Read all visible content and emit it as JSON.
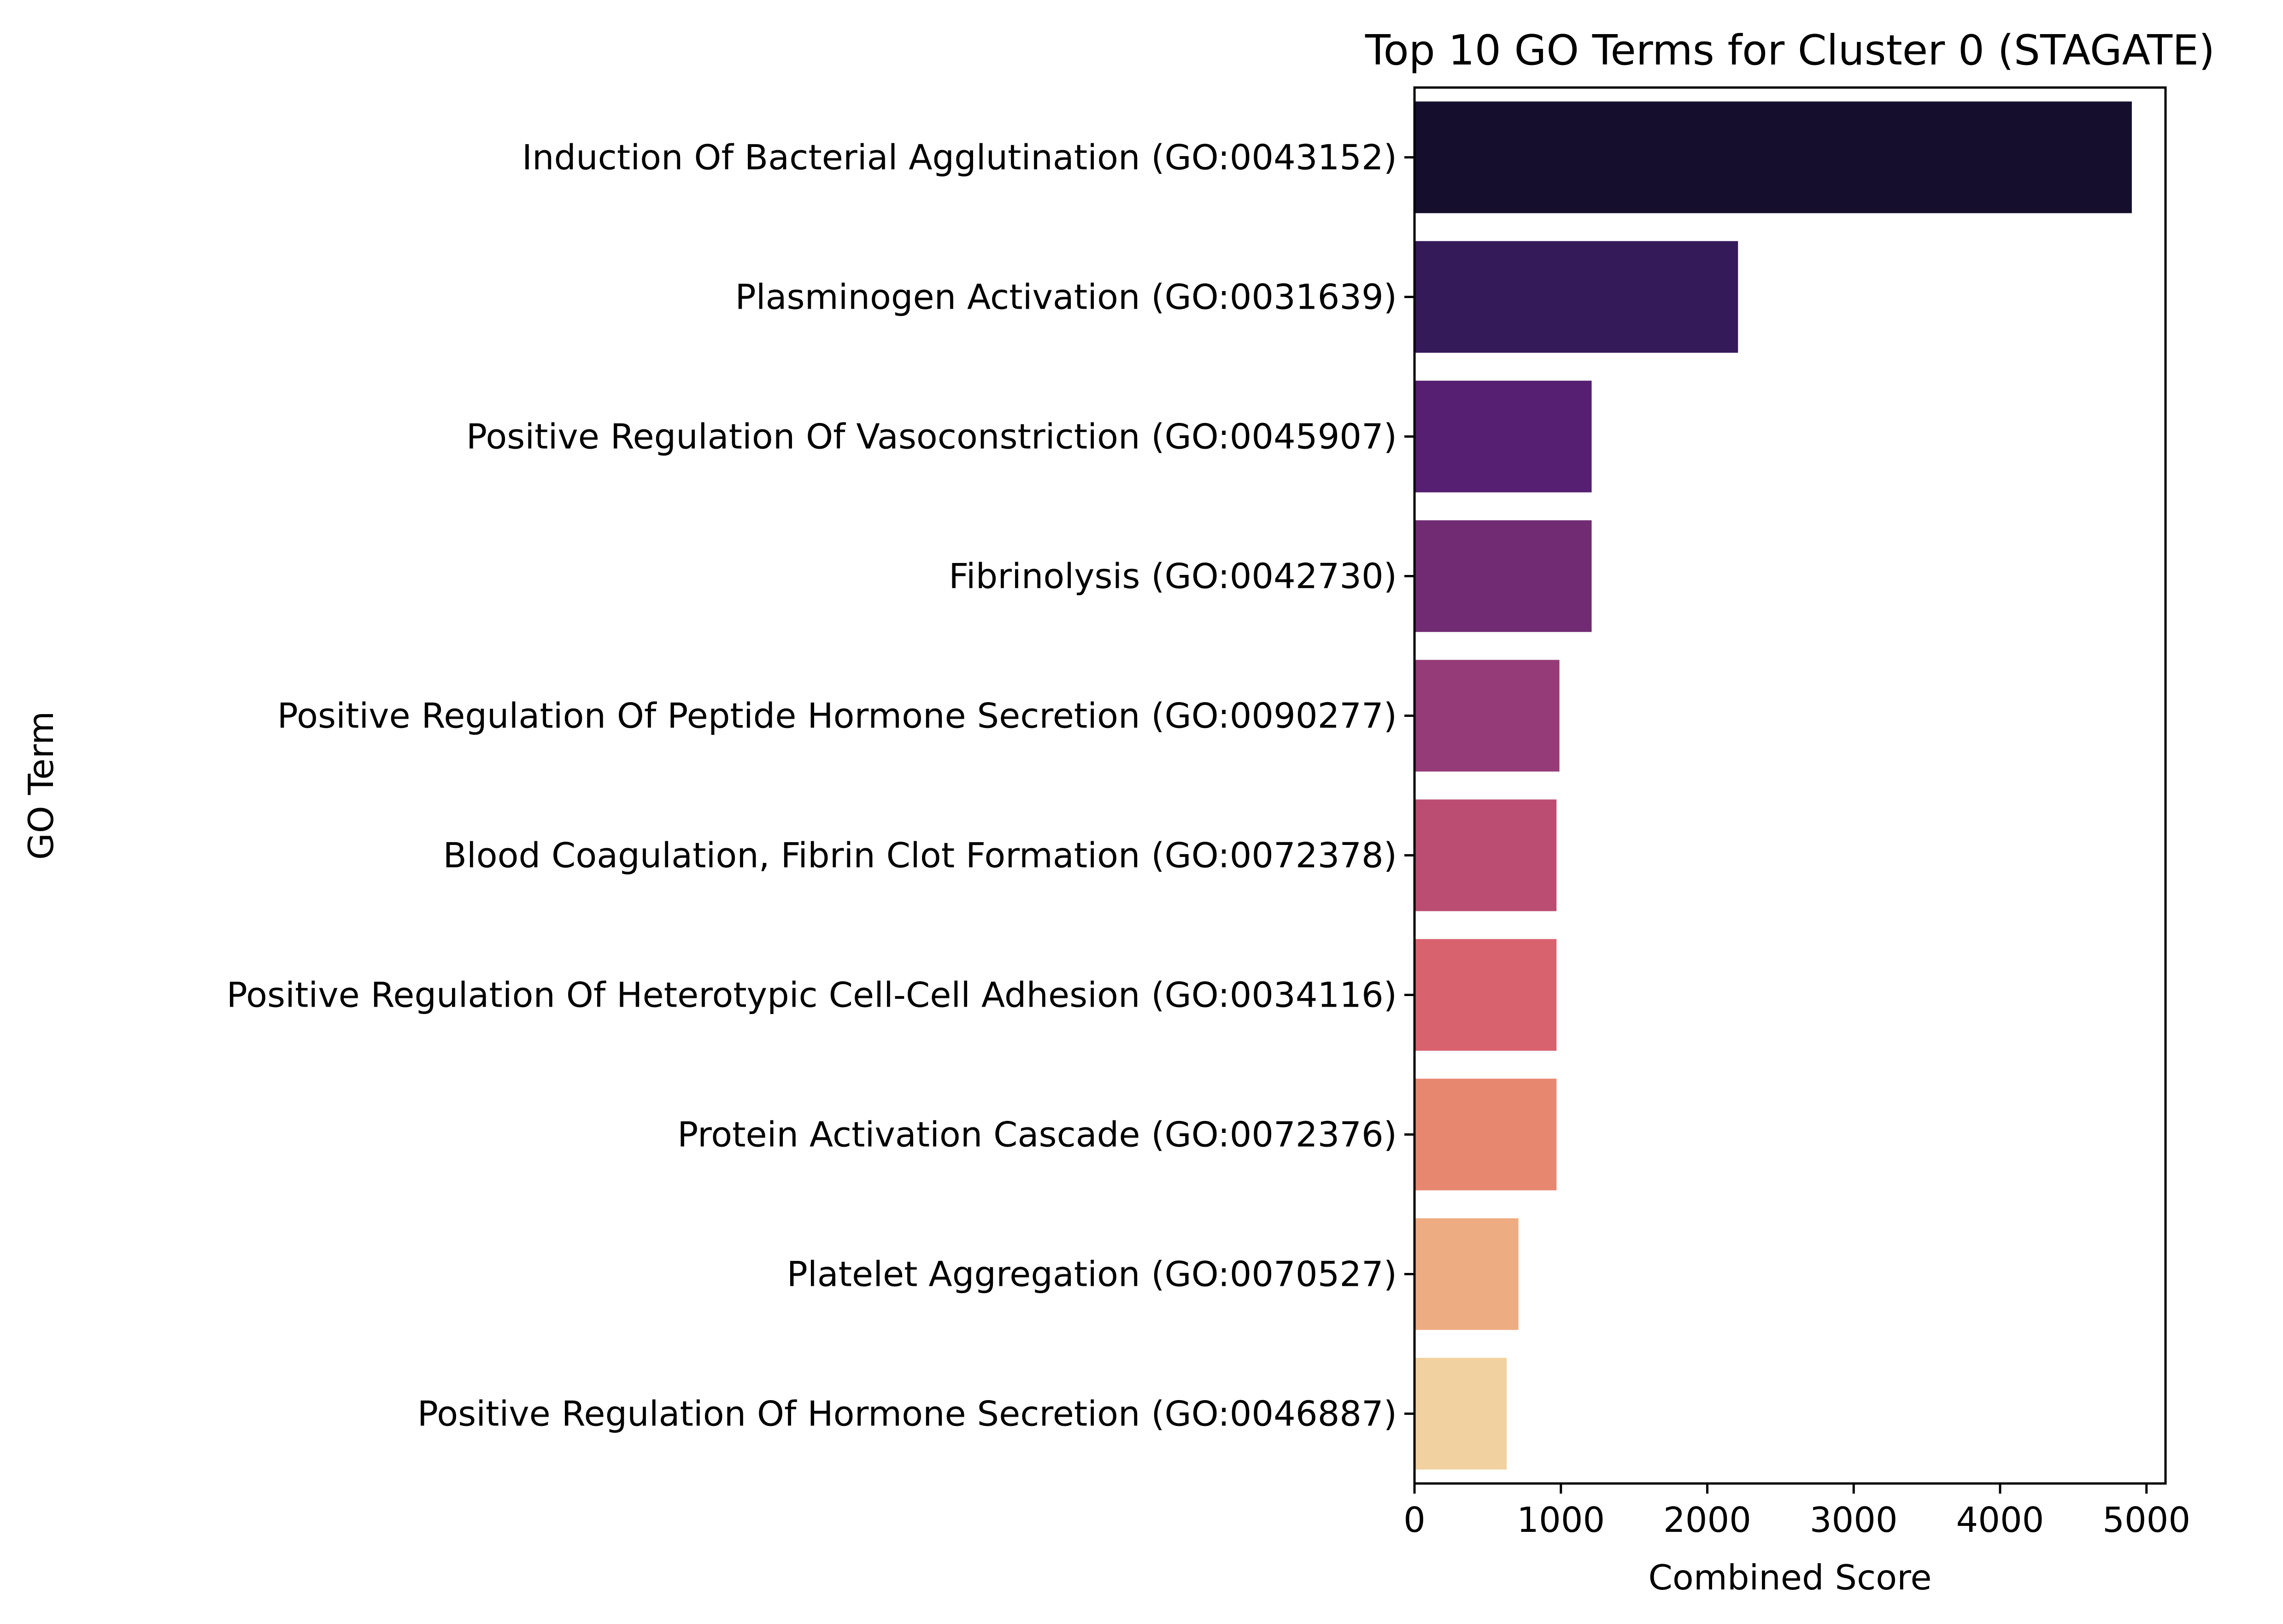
{
  "chart_data": {
    "type": "bar",
    "orientation": "horizontal",
    "title": "Top 10 GO Terms for Cluster 0 (STAGATE)",
    "xlabel": "Combined Score",
    "ylabel": "GO Term",
    "xlim": [
      0,
      5130
    ],
    "xticks": [
      0,
      1000,
      2000,
      3000,
      4000,
      5000
    ],
    "xtick_labels": [
      "0",
      "1000",
      "2000",
      "3000",
      "4000",
      "5000"
    ],
    "grid": false,
    "legend": null,
    "categories": [
      "Induction Of Bacterial Agglutination (GO:0043152)",
      "Plasminogen Activation (GO:0031639)",
      "Positive Regulation Of Vasoconstriction (GO:0045907)",
      "Fibrinolysis (GO:0042730)",
      "Positive Regulation Of Peptide Hormone Secretion (GO:0090277)",
      "Blood Coagulation, Fibrin Clot Formation (GO:0072378)",
      "Positive Regulation Of Heterotypic Cell-Cell Adhesion (GO:0034116)",
      "Protein Activation Cascade (GO:0072376)",
      "Platelet Aggregation (GO:0070527)",
      "Positive Regulation Of Hormone Secretion (GO:0046887)"
    ],
    "values": [
      4900,
      2210,
      1210,
      1210,
      990,
      970,
      970,
      970,
      710,
      630
    ],
    "colors": [
      "#150f2d",
      "#351a5a",
      "#561f71",
      "#712b73",
      "#953b77",
      "#bb4d73",
      "#d9626f",
      "#e88770",
      "#eeac82",
      "#f2d1a0"
    ]
  }
}
